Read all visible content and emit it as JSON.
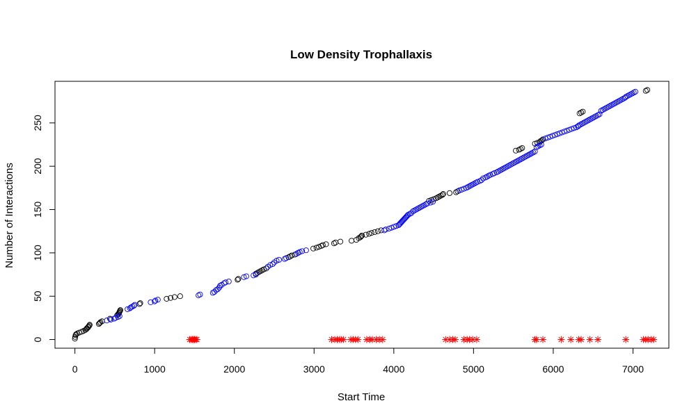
{
  "chart_data": {
    "type": "scatter",
    "title": "Low Density Trophallaxis",
    "xlabel": "Start Time",
    "ylabel": "Number of Interactions",
    "xlim": [
      -250,
      7450
    ],
    "ylim": [
      -10,
      298
    ],
    "x_ticks": [
      0,
      1000,
      2000,
      3000,
      4000,
      5000,
      6000,
      7000
    ],
    "y_ticks": [
      0,
      50,
      100,
      150,
      200,
      250
    ],
    "grid": false,
    "legend": "none",
    "colors": {
      "black": "#000000",
      "blue": "#0000ff",
      "red": "#ff0000"
    },
    "series": [
      {
        "color": "black",
        "marker": "circle",
        "points": [
          [
            0,
            1
          ],
          [
            3,
            3
          ],
          [
            8,
            5
          ],
          [
            14,
            6
          ],
          [
            30,
            7
          ],
          [
            55,
            8
          ],
          [
            85,
            9
          ],
          [
            110,
            10
          ],
          [
            130,
            11
          ],
          [
            145,
            12
          ],
          [
            150,
            13
          ],
          [
            165,
            14
          ],
          [
            170,
            15
          ],
          [
            180,
            16
          ],
          [
            185,
            17
          ],
          [
            300,
            18
          ],
          [
            310,
            19
          ],
          [
            320,
            20
          ],
          [
            340,
            21
          ],
          [
            440,
            24
          ],
          [
            530,
            28
          ],
          [
            540,
            29
          ],
          [
            550,
            30
          ],
          [
            555,
            31
          ],
          [
            560,
            32
          ],
          [
            565,
            33
          ],
          [
            570,
            34
          ],
          [
            810,
            41
          ],
          [
            820,
            42
          ],
          [
            1150,
            47
          ],
          [
            1200,
            48
          ],
          [
            1250,
            49
          ],
          [
            1320,
            50
          ],
          [
            2040,
            69
          ],
          [
            2050,
            70
          ],
          [
            2270,
            76
          ],
          [
            2290,
            77
          ],
          [
            2310,
            78
          ],
          [
            2330,
            79
          ],
          [
            2350,
            80
          ],
          [
            2370,
            81
          ],
          [
            2400,
            82
          ],
          [
            2680,
            95
          ],
          [
            2700,
            96
          ],
          [
            2720,
            97
          ],
          [
            2760,
            98
          ],
          [
            2990,
            105
          ],
          [
            3030,
            106
          ],
          [
            3060,
            107
          ],
          [
            3090,
            108
          ],
          [
            3110,
            109
          ],
          [
            3150,
            110
          ],
          [
            3250,
            111
          ],
          [
            3270,
            112
          ],
          [
            3330,
            113
          ],
          [
            3470,
            114
          ],
          [
            3530,
            115
          ],
          [
            3560,
            117
          ],
          [
            3580,
            118
          ],
          [
            3590,
            119
          ],
          [
            3600,
            120
          ],
          [
            3650,
            121
          ],
          [
            3690,
            122
          ],
          [
            3720,
            123
          ],
          [
            3760,
            124
          ],
          [
            3800,
            125
          ],
          [
            3840,
            126
          ],
          [
            4440,
            160
          ],
          [
            4470,
            161
          ],
          [
            4500,
            162
          ],
          [
            4530,
            163
          ],
          [
            4550,
            164
          ],
          [
            4570,
            165
          ],
          [
            4590,
            166
          ],
          [
            4610,
            167
          ],
          [
            4620,
            168
          ],
          [
            4700,
            169
          ],
          [
            4780,
            170
          ],
          [
            4800,
            171
          ],
          [
            5530,
            218
          ],
          [
            5570,
            219
          ],
          [
            5590,
            220
          ],
          [
            5610,
            221
          ],
          [
            5770,
            226
          ],
          [
            5800,
            227
          ],
          [
            5830,
            228
          ],
          [
            5840,
            229
          ],
          [
            5860,
            230
          ],
          [
            5870,
            231
          ],
          [
            6330,
            261
          ],
          [
            6350,
            262
          ],
          [
            6370,
            263
          ],
          [
            7160,
            287
          ],
          [
            7180,
            288
          ]
        ]
      },
      {
        "color": "blue",
        "marker": "circle",
        "points": [
          [
            400,
            22
          ],
          [
            450,
            23
          ],
          [
            490,
            24
          ],
          [
            510,
            25
          ],
          [
            540,
            26
          ],
          [
            560,
            27
          ],
          [
            660,
            35
          ],
          [
            690,
            36
          ],
          [
            700,
            37
          ],
          [
            720,
            38
          ],
          [
            740,
            39
          ],
          [
            750,
            40
          ],
          [
            950,
            43
          ],
          [
            1000,
            44
          ],
          [
            1010,
            45
          ],
          [
            1040,
            46
          ],
          [
            1550,
            51
          ],
          [
            1570,
            52
          ],
          [
            1730,
            54
          ],
          [
            1750,
            55
          ],
          [
            1770,
            57
          ],
          [
            1790,
            58
          ],
          [
            1810,
            60
          ],
          [
            1820,
            62
          ],
          [
            1840,
            63
          ],
          [
            1870,
            65
          ],
          [
            1890,
            66
          ],
          [
            1930,
            67
          ],
          [
            2120,
            72
          ],
          [
            2150,
            73
          ],
          [
            2240,
            74
          ],
          [
            2270,
            75
          ],
          [
            2420,
            84
          ],
          [
            2450,
            86
          ],
          [
            2480,
            87
          ],
          [
            2500,
            89
          ],
          [
            2530,
            91
          ],
          [
            2560,
            92
          ],
          [
            2630,
            93
          ],
          [
            2650,
            94
          ],
          [
            2780,
            99
          ],
          [
            2800,
            100
          ],
          [
            2820,
            101
          ],
          [
            2850,
            102
          ],
          [
            2900,
            103
          ],
          [
            3880,
            126
          ],
          [
            3900,
            127
          ],
          [
            3940,
            128
          ],
          [
            3970,
            129
          ],
          [
            4000,
            130
          ],
          [
            4030,
            131
          ],
          [
            4060,
            132
          ],
          [
            4070,
            133
          ],
          [
            4080,
            134
          ],
          [
            4090,
            135
          ],
          [
            4100,
            136
          ],
          [
            4110,
            137
          ],
          [
            4120,
            138
          ],
          [
            4130,
            139
          ],
          [
            4140,
            140
          ],
          [
            4150,
            141
          ],
          [
            4160,
            142
          ],
          [
            4170,
            143
          ],
          [
            4180,
            144
          ],
          [
            4200,
            145
          ],
          [
            4220,
            146
          ],
          [
            4240,
            148
          ],
          [
            4260,
            149
          ],
          [
            4280,
            150
          ],
          [
            4300,
            151
          ],
          [
            4320,
            152
          ],
          [
            4340,
            153
          ],
          [
            4360,
            154
          ],
          [
            4380,
            155
          ],
          [
            4400,
            156
          ],
          [
            4420,
            157
          ],
          [
            4460,
            158
          ],
          [
            4490,
            159
          ],
          [
            4820,
            172
          ],
          [
            4850,
            173
          ],
          [
            4880,
            174
          ],
          [
            4910,
            175
          ],
          [
            4930,
            176
          ],
          [
            4950,
            177
          ],
          [
            4970,
            178
          ],
          [
            4990,
            179
          ],
          [
            5010,
            180
          ],
          [
            5030,
            181
          ],
          [
            5050,
            182
          ],
          [
            5080,
            183
          ],
          [
            5100,
            184
          ],
          [
            5120,
            186
          ],
          [
            5150,
            187
          ],
          [
            5170,
            188
          ],
          [
            5190,
            189
          ],
          [
            5210,
            190
          ],
          [
            5240,
            191
          ],
          [
            5260,
            192
          ],
          [
            5290,
            193
          ],
          [
            5310,
            194
          ],
          [
            5330,
            195
          ],
          [
            5350,
            196
          ],
          [
            5370,
            197
          ],
          [
            5390,
            198
          ],
          [
            5410,
            199
          ],
          [
            5430,
            200
          ],
          [
            5450,
            201
          ],
          [
            5470,
            202
          ],
          [
            5490,
            203
          ],
          [
            5510,
            204
          ],
          [
            5530,
            205
          ],
          [
            5550,
            206
          ],
          [
            5570,
            207
          ],
          [
            5590,
            208
          ],
          [
            5610,
            209
          ],
          [
            5630,
            210
          ],
          [
            5650,
            211
          ],
          [
            5670,
            212
          ],
          [
            5690,
            213
          ],
          [
            5710,
            214
          ],
          [
            5730,
            215
          ],
          [
            5750,
            216
          ],
          [
            5770,
            217
          ],
          [
            5790,
            222
          ],
          [
            5810,
            223
          ],
          [
            5830,
            224
          ],
          [
            5850,
            225
          ],
          [
            5900,
            232
          ],
          [
            5930,
            233
          ],
          [
            5960,
            234
          ],
          [
            5990,
            235
          ],
          [
            6020,
            236
          ],
          [
            6050,
            237
          ],
          [
            6080,
            238
          ],
          [
            6110,
            239
          ],
          [
            6140,
            240
          ],
          [
            6170,
            241
          ],
          [
            6200,
            242
          ],
          [
            6230,
            243
          ],
          [
            6260,
            244
          ],
          [
            6290,
            245
          ],
          [
            6310,
            246
          ],
          [
            6320,
            247
          ],
          [
            6340,
            248
          ],
          [
            6360,
            249
          ],
          [
            6380,
            250
          ],
          [
            6400,
            251
          ],
          [
            6420,
            252
          ],
          [
            6440,
            253
          ],
          [
            6460,
            254
          ],
          [
            6480,
            255
          ],
          [
            6500,
            256
          ],
          [
            6520,
            257
          ],
          [
            6540,
            258
          ],
          [
            6560,
            259
          ],
          [
            6580,
            260
          ],
          [
            6600,
            264
          ],
          [
            6620,
            265
          ],
          [
            6640,
            266
          ],
          [
            6660,
            267
          ],
          [
            6680,
            268
          ],
          [
            6700,
            269
          ],
          [
            6720,
            270
          ],
          [
            6740,
            271
          ],
          [
            6760,
            272
          ],
          [
            6780,
            273
          ],
          [
            6800,
            274
          ],
          [
            6820,
            275
          ],
          [
            6840,
            276
          ],
          [
            6860,
            277
          ],
          [
            6880,
            278
          ],
          [
            6900,
            279
          ],
          [
            6910,
            280
          ],
          [
            6930,
            281
          ],
          [
            6950,
            282
          ],
          [
            6970,
            283
          ],
          [
            6990,
            284
          ],
          [
            7010,
            285
          ],
          [
            7030,
            286
          ]
        ]
      },
      {
        "color": "red",
        "marker": "asterisk",
        "points": [
          [
            1440,
            0
          ],
          [
            1460,
            0
          ],
          [
            1475,
            0
          ],
          [
            1490,
            0
          ],
          [
            1500,
            0
          ],
          [
            1515,
            0
          ],
          [
            1530,
            0
          ],
          [
            3220,
            0
          ],
          [
            3260,
            0
          ],
          [
            3290,
            0
          ],
          [
            3320,
            0
          ],
          [
            3340,
            0
          ],
          [
            3370,
            0
          ],
          [
            3460,
            0
          ],
          [
            3490,
            0
          ],
          [
            3520,
            0
          ],
          [
            3550,
            0
          ],
          [
            3660,
            0
          ],
          [
            3700,
            0
          ],
          [
            3730,
            0
          ],
          [
            3780,
            0
          ],
          [
            3820,
            0
          ],
          [
            3860,
            0
          ],
          [
            4650,
            0
          ],
          [
            4700,
            0
          ],
          [
            4740,
            0
          ],
          [
            4770,
            0
          ],
          [
            4880,
            0
          ],
          [
            4920,
            0
          ],
          [
            4950,
            0
          ],
          [
            4990,
            0
          ],
          [
            5040,
            0
          ],
          [
            5770,
            0
          ],
          [
            5790,
            0
          ],
          [
            5870,
            0
          ],
          [
            6100,
            0
          ],
          [
            6220,
            0
          ],
          [
            6320,
            0
          ],
          [
            6350,
            0
          ],
          [
            6460,
            0
          ],
          [
            6560,
            0
          ],
          [
            6910,
            0
          ],
          [
            7130,
            0
          ],
          [
            7160,
            0
          ],
          [
            7190,
            0
          ],
          [
            7230,
            0
          ],
          [
            7260,
            0
          ]
        ]
      }
    ]
  }
}
